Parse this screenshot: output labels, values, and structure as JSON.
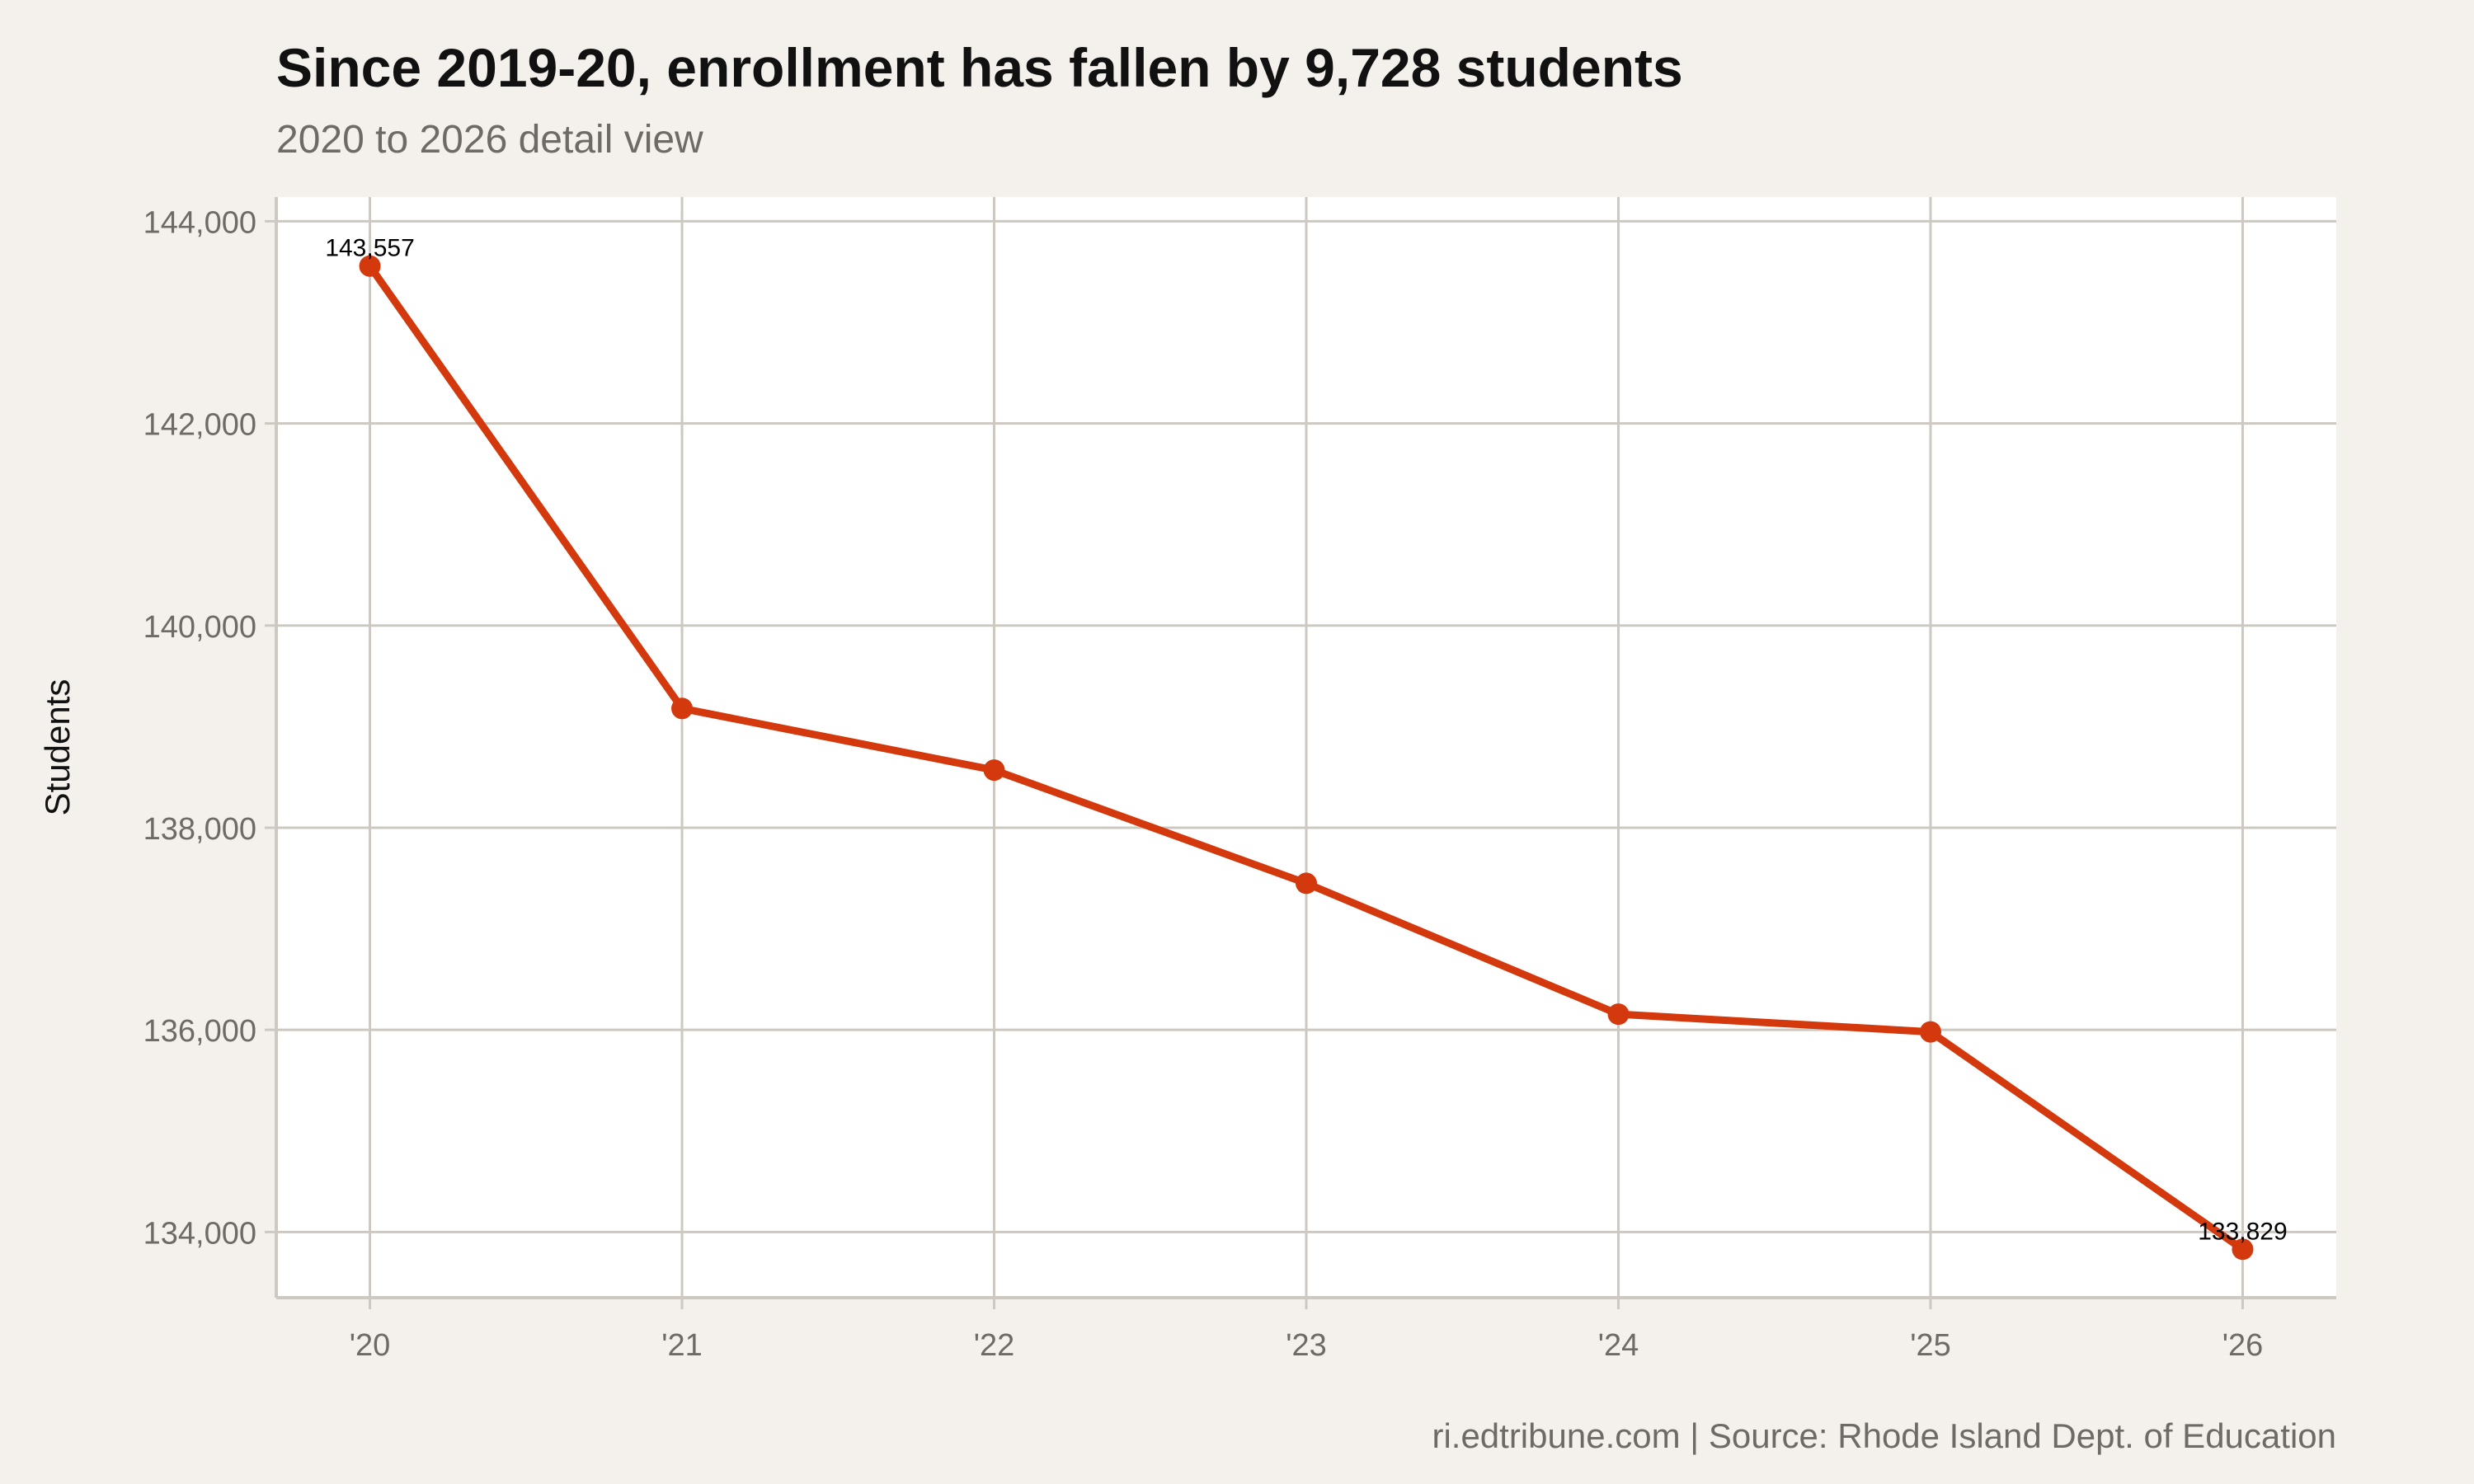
{
  "title": "Since 2019-20, enrollment has fallen by 9,728 students",
  "subtitle": "2020 to 2026 detail view",
  "caption": "ri.edtribune.com | Source: Rhode Island Dept. of Education",
  "colors": {
    "line": "#d4380d",
    "grid": "#cdc8c0",
    "background": "#f4f1ec",
    "panel": "#ffffff"
  },
  "chart_data": {
    "type": "line",
    "x": [
      2020,
      2021,
      2022,
      2023,
      2024,
      2025,
      2026
    ],
    "x_tick_labels": [
      "'20",
      "'21",
      "'22",
      "'23",
      "'24",
      "'25",
      "'26"
    ],
    "series": [
      {
        "values": [
          143557,
          139180,
          138570,
          137450,
          136155,
          135980,
          133829
        ]
      }
    ],
    "data_labels": [
      {
        "x": 2020,
        "text": "143,557"
      },
      {
        "x": 2026,
        "text": "133,829"
      }
    ],
    "ylabel": "Students",
    "xlabel": "",
    "y_ticks": [
      134000,
      136000,
      138000,
      140000,
      142000,
      144000
    ],
    "y_tick_labels": [
      "134,000",
      "136,000",
      "138,000",
      "140,000",
      "142,000",
      "144,000"
    ],
    "ylim": [
      133350,
      144240
    ],
    "xlim": [
      2019.7,
      2026.3
    ],
    "grid": true,
    "markers": true
  }
}
